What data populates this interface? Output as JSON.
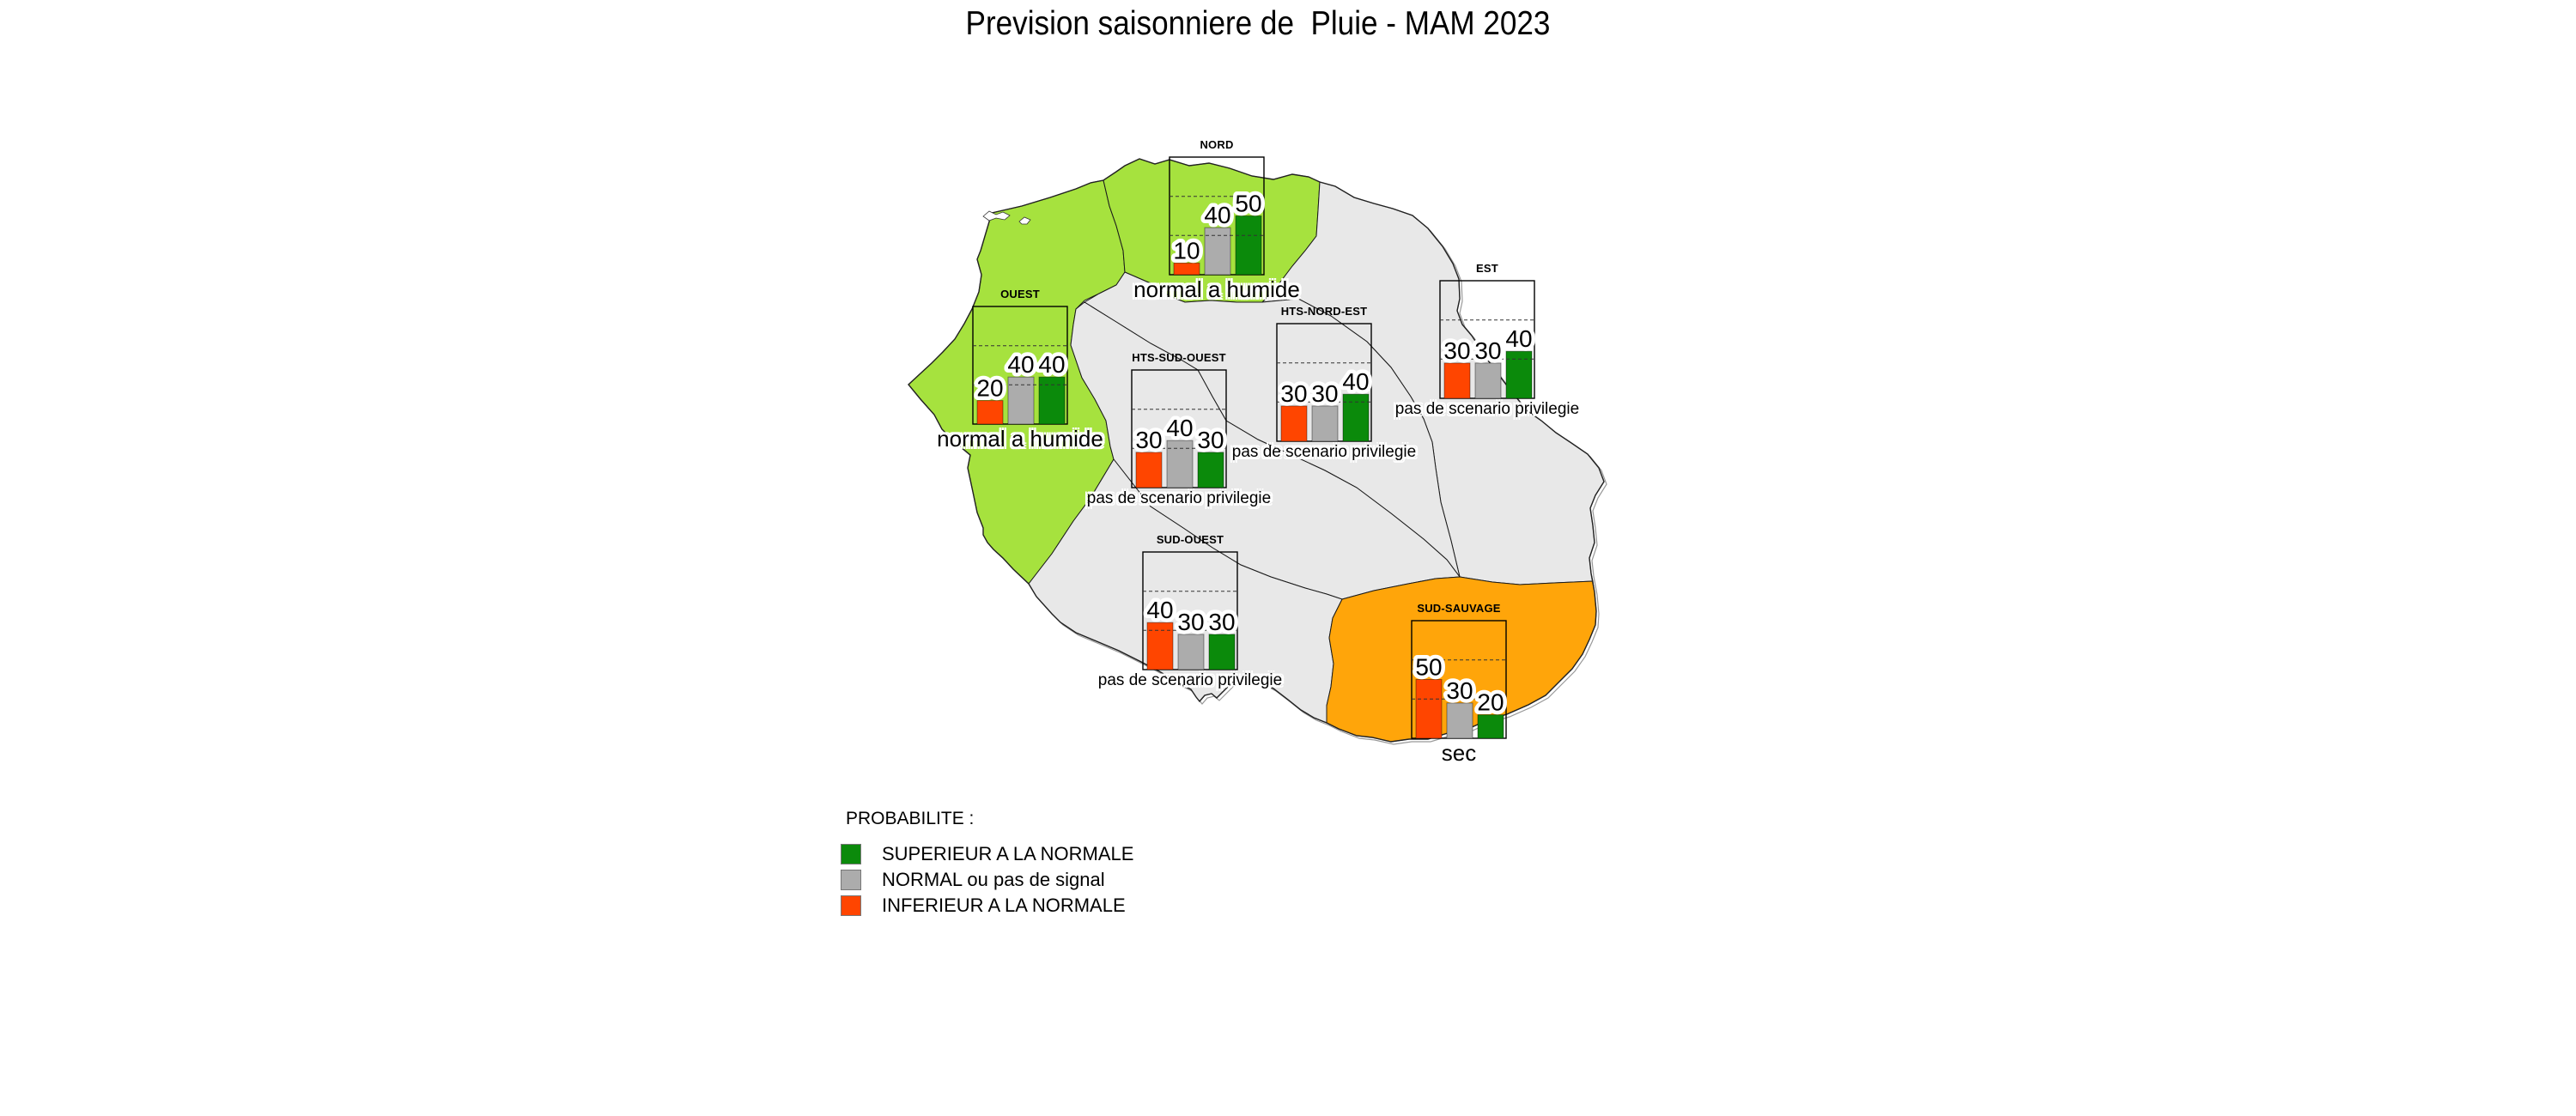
{
  "title": "Prevision saisonniere de  Pluie - MAM 2023",
  "colors": {
    "wet_region": "#A6E23E",
    "neutral_region": "#E8E8E8",
    "dry_region": "#FFA50A",
    "bar_colors": [
      "#FF4500",
      "#ACACAC",
      "#0B8A0B"
    ],
    "box_border": "#000000",
    "coastline": "#222222"
  },
  "regions": [
    {
      "id": "nord",
      "name": "NORD",
      "status": "normal a humide",
      "values": [
        10,
        40,
        50
      ]
    },
    {
      "id": "ouest",
      "name": "OUEST",
      "status": "normal a humide",
      "values": [
        20,
        40,
        40
      ]
    },
    {
      "id": "hts-sud-ouest",
      "name": "HTS-SUD-OUEST",
      "status": "pas de scenario privilegie",
      "values": [
        30,
        40,
        30
      ]
    },
    {
      "id": "hts-nord-est",
      "name": "HTS-NORD-EST",
      "status": "pas de scenario privilegie",
      "values": [
        30,
        30,
        40
      ]
    },
    {
      "id": "est",
      "name": "EST",
      "status": "pas de scenario privilegie",
      "values": [
        30,
        30,
        40
      ]
    },
    {
      "id": "sud-ouest",
      "name": "SUD-OUEST",
      "status": "pas de scenario privilegie",
      "values": [
        40,
        30,
        30
      ]
    },
    {
      "id": "sud-sauvage",
      "name": "SUD-SAUVAGE",
      "status": "sec",
      "values": [
        50,
        30,
        20
      ]
    }
  ],
  "bar_keys": [
    "inferieur",
    "normal",
    "superieur"
  ],
  "legend": {
    "title": "PROBABILITE :",
    "items": [
      {
        "id": "superieur-a-la-normale",
        "label": "SUPERIEUR A LA NORMALE",
        "color": "#0B8A0B"
      },
      {
        "id": "normal-ou-pas-de-signal",
        "label": "NORMAL ou pas de signal",
        "color": "#ACACAC"
      },
      {
        "id": "inferieur-a-la-normale",
        "label": "INFERIEUR A LA NORMALE",
        "color": "#FF4500"
      }
    ]
  },
  "chart_data": {
    "type": "bar",
    "title": "Prevision saisonniere de  Pluie - MAM 2023",
    "categories": [
      "INFERIEUR A LA NORMALE",
      "NORMAL ou pas de signal",
      "SUPERIEUR A LA NORMALE"
    ],
    "unit": "%",
    "ylim": [
      0,
      100
    ],
    "gridlines": [
      33.3,
      66.7
    ],
    "grid": "dashed",
    "legend_position": "bottom-left",
    "series": [
      {
        "name": "NORD",
        "values": [
          10,
          40,
          50
        ],
        "conclusion": "normal a humide"
      },
      {
        "name": "OUEST",
        "values": [
          20,
          40,
          40
        ],
        "conclusion": "normal a humide"
      },
      {
        "name": "HTS-SUD-OUEST",
        "values": [
          30,
          40,
          30
        ],
        "conclusion": "pas de scenario privilegie"
      },
      {
        "name": "HTS-NORD-EST",
        "values": [
          30,
          30,
          40
        ],
        "conclusion": "pas de scenario privilegie"
      },
      {
        "name": "EST",
        "values": [
          30,
          30,
          40
        ],
        "conclusion": "pas de scenario privilegie"
      },
      {
        "name": "SUD-OUEST",
        "values": [
          40,
          30,
          30
        ],
        "conclusion": "pas de scenario privilegie"
      },
      {
        "name": "SUD-SAUVAGE",
        "values": [
          50,
          30,
          20
        ],
        "conclusion": "sec"
      }
    ]
  }
}
